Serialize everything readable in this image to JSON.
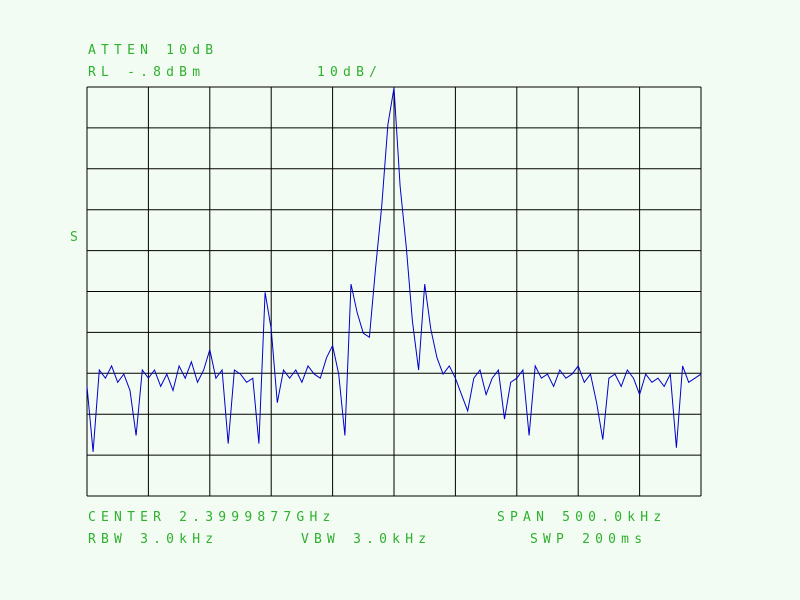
{
  "header": {
    "atten": "ATTEN 10dB",
    "ref_level": "RL -.8dBm",
    "scale": "10dB/"
  },
  "side_marker": "S",
  "footer": {
    "center": "CENTER 2.3999877GHz",
    "span": "SPAN 500.0kHz",
    "rbw": "RBW 3.0kHz",
    "vbw": "VBW 3.0kHz",
    "sweep": "SWP 200ms"
  },
  "colors": {
    "text": "#2fb02f",
    "trace": "#0000cc",
    "grid": "#000000",
    "background": "#f2fcf2"
  },
  "chart_data": {
    "type": "line",
    "title": "",
    "xlabel": "",
    "ylabel": "",
    "x_range_ghz": [
      2.3997377,
      2.4002377
    ],
    "ylim": [
      -100.8,
      -0.8
    ],
    "y_unit": "dBm",
    "grid": true,
    "grid_divisions": {
      "x": 10,
      "y": 10
    },
    "series": [
      {
        "values": [
          -74,
          -90,
          -70,
          -72,
          -69,
          -73,
          -71,
          -75,
          -86,
          -70,
          -72,
          -70,
          -74,
          -71,
          -75,
          -69,
          -72,
          -68,
          -73,
          -70,
          -65,
          -72,
          -70,
          -88,
          -70,
          -71,
          -73,
          -72,
          -88,
          -51,
          -60,
          -78,
          -70,
          -72,
          -70,
          -73,
          -69,
          -71,
          -72,
          -67,
          -64,
          -71,
          -86,
          -49,
          -56,
          -61,
          -62,
          -45,
          -30,
          -10,
          -1,
          -25,
          -40,
          -58,
          -70,
          -49,
          -60,
          -67,
          -71,
          -69,
          -72,
          -76,
          -80,
          -72,
          -70,
          -76,
          -72,
          -70,
          -82,
          -73,
          -72,
          -70,
          -86,
          -69,
          -72,
          -71,
          -74,
          -70,
          -72,
          -71,
          -69,
          -73,
          -71,
          -78,
          -87,
          -72,
          -71,
          -74,
          -70,
          -72,
          -76,
          -71,
          -73,
          -72,
          -74,
          -71,
          -89,
          -69,
          -73,
          -72,
          -71
        ]
      }
    ]
  }
}
